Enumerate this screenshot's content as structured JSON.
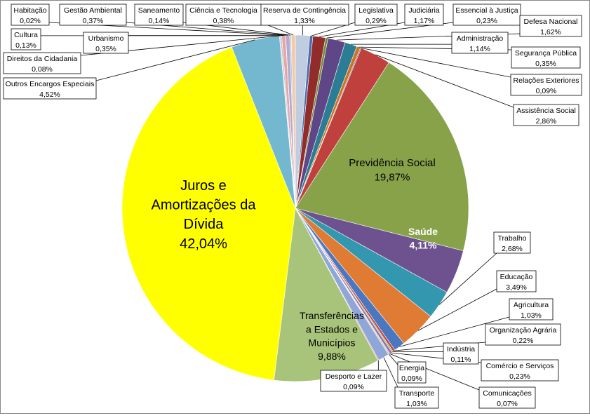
{
  "chart_data": {
    "type": "pie",
    "title": "",
    "slices": [
      {
        "label": "Reserva de Contingência",
        "value": 1.33,
        "text": "1,33%",
        "color": "#c0ccdf"
      },
      {
        "label": "Legislativa",
        "value": 0.29,
        "text": "0,29%",
        "color": "#4a6cb0"
      },
      {
        "label": "Judiciária",
        "value": 1.17,
        "text": "1,17%",
        "color": "#922c2a"
      },
      {
        "label": "Essencial à Justiça",
        "value": 0.23,
        "text": "0,23%",
        "color": "#6f8a2f"
      },
      {
        "label": "Defesa Nacional",
        "value": 1.62,
        "text": "1,62%",
        "color": "#5e4687"
      },
      {
        "label": "Administração",
        "value": 1.14,
        "text": "1,14%",
        "color": "#2a7d92"
      },
      {
        "label": "Segurança Pública",
        "value": 0.35,
        "text": "0,35%",
        "color": "#d2721f"
      },
      {
        "label": "Relações Exteriores",
        "value": 0.09,
        "text": "0,09%",
        "color": "#2f5da0"
      },
      {
        "label": "Assistência Social",
        "value": 2.86,
        "text": "2,86%",
        "color": "#c0403d"
      },
      {
        "label": "Previdência Social",
        "value": 19.87,
        "text": "19,87%",
        "color": "#88a24a"
      },
      {
        "label": "Saúde",
        "value": 4.11,
        "text": "4,11%",
        "color": "#6e528f"
      },
      {
        "label": "Trabalho",
        "value": 2.68,
        "text": "2,68%",
        "color": "#3497b0"
      },
      {
        "label": "Educação",
        "value": 3.49,
        "text": "3,49%",
        "color": "#e07b33"
      },
      {
        "label": "Agricultura",
        "value": 1.03,
        "text": "1,03%",
        "color": "#4b77c0"
      },
      {
        "label": "Organização Agrária",
        "value": 0.22,
        "text": "0,22%",
        "color": "#c8453f"
      },
      {
        "label": "Indústria",
        "value": 0.11,
        "text": "0,11%",
        "color": "#94b353"
      },
      {
        "label": "Comércio e Serviços",
        "value": 0.23,
        "text": "0,23%",
        "color": "#8c72b0"
      },
      {
        "label": "Comunicações",
        "value": 0.07,
        "text": "0,07%",
        "color": "#3fb0c8"
      },
      {
        "label": "Energia",
        "value": 0.09,
        "text": "0,09%",
        "color": "#f2a15c"
      },
      {
        "label": "Transporte",
        "value": 1.03,
        "text": "1,03%",
        "color": "#8fa7d8"
      },
      {
        "label": "Desporto e Lazer",
        "value": 0.09,
        "text": "0,09%",
        "color": "#d98c88"
      },
      {
        "label": "Transferências a Estados e Municípios",
        "value": 9.88,
        "text": "9,88%",
        "color": "#a8c47a"
      },
      {
        "label": "Juros e Amortizações da Dívida",
        "value": 42.04,
        "text": "42,04%",
        "color": "#ffff00"
      },
      {
        "label": "Outros Encargos Especiais",
        "value": 4.52,
        "text": "4,52%",
        "color": "#74b8cf"
      },
      {
        "label": "Direitos da Cidadania",
        "value": 0.08,
        "text": "0,08%",
        "color": "#f4b383"
      },
      {
        "label": "Cultura",
        "value": 0.13,
        "text": "0,13%",
        "color": "#adc1e6"
      },
      {
        "label": "Urbanismo",
        "value": 0.35,
        "text": "0,35%",
        "color": "#e3a8a6"
      },
      {
        "label": "Habitação",
        "value": 0.02,
        "text": "0,02%",
        "color": "#c8dba2"
      },
      {
        "label": "Gestão Ambiental",
        "value": 0.37,
        "text": "0,37%",
        "color": "#b7a8d0"
      },
      {
        "label": "Saneamento",
        "value": 0.14,
        "text": "0,14%",
        "color": "#9ed4e4"
      },
      {
        "label": "Ciência e Tecnologia",
        "value": 0.38,
        "text": "0,38%",
        "color": "#f8c8a0"
      }
    ]
  }
}
